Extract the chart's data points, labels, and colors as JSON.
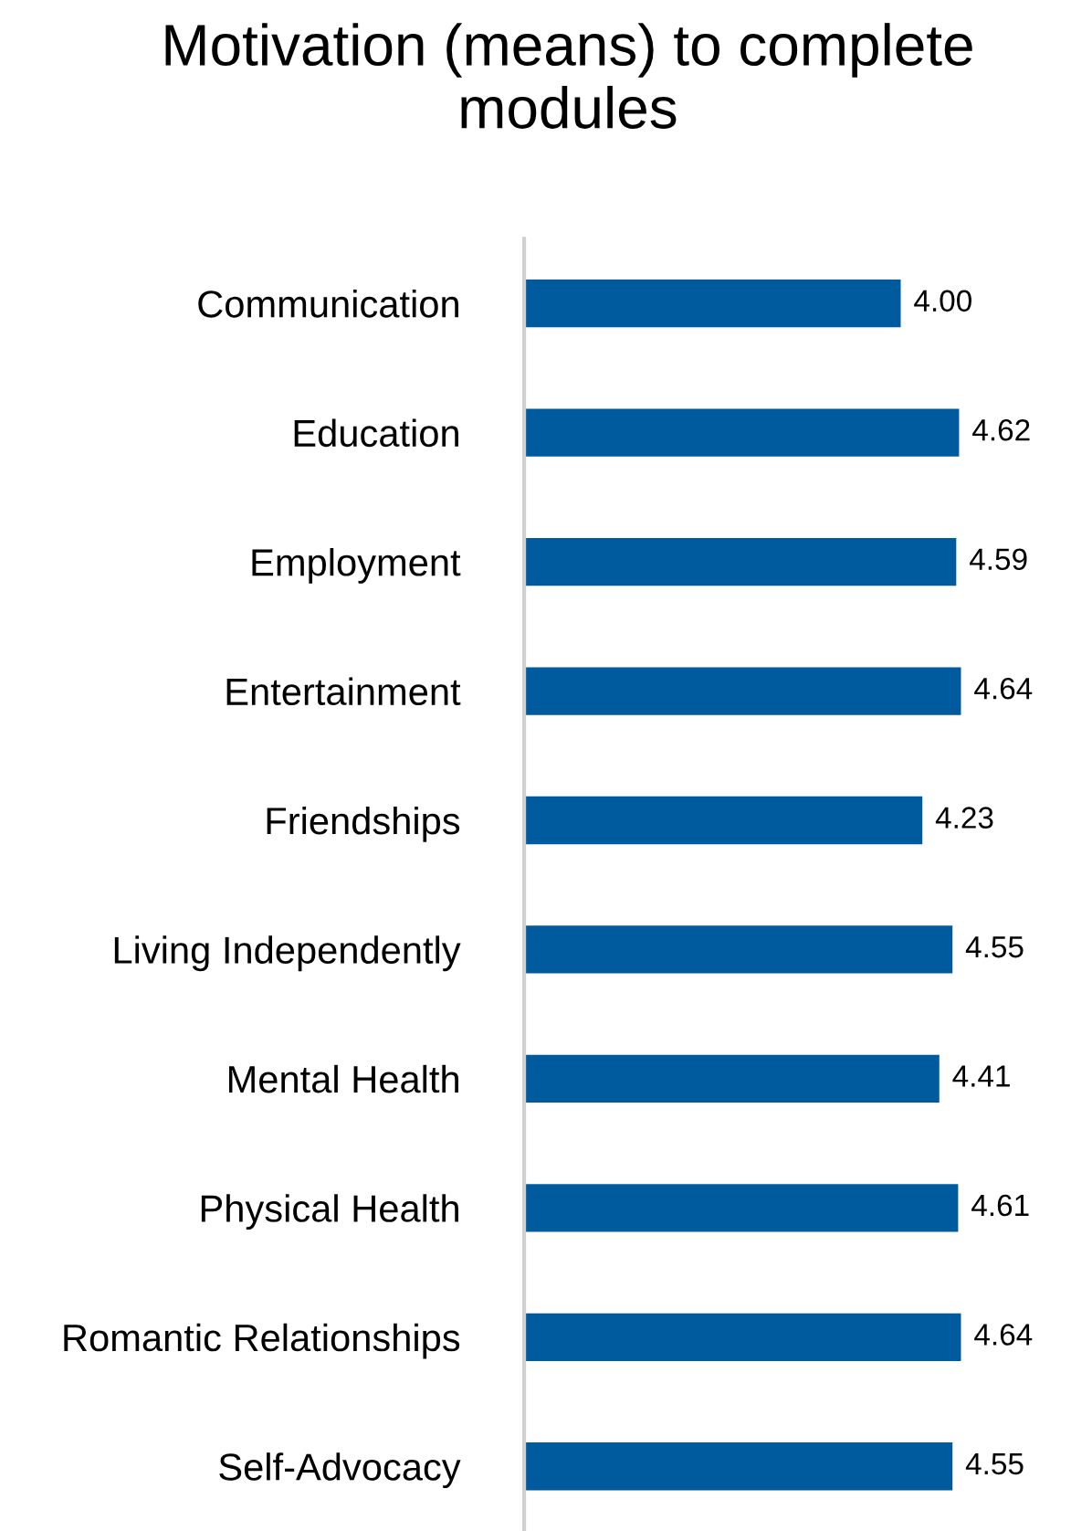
{
  "chart_data": {
    "type": "bar",
    "orientation": "horizontal",
    "title": "Motivation (means) to complete modules",
    "categories": [
      "Communication",
      "Education",
      "Employment",
      "Entertainment",
      "Friendships",
      "Living Independently",
      "Mental Health",
      "Physical Health",
      "Romantic Relationships",
      "Self-Advocacy"
    ],
    "values": [
      4.0,
      4.62,
      4.59,
      4.64,
      4.23,
      4.55,
      4.41,
      4.61,
      4.64,
      4.55
    ],
    "value_labels": [
      "4.00",
      "4.62",
      "4.59",
      "4.64",
      "4.23",
      "4.55",
      "4.41",
      "4.61",
      "4.64",
      "4.55"
    ],
    "color": "#005a9e",
    "tick_labels": "y",
    "grid": false,
    "legend": false
  }
}
